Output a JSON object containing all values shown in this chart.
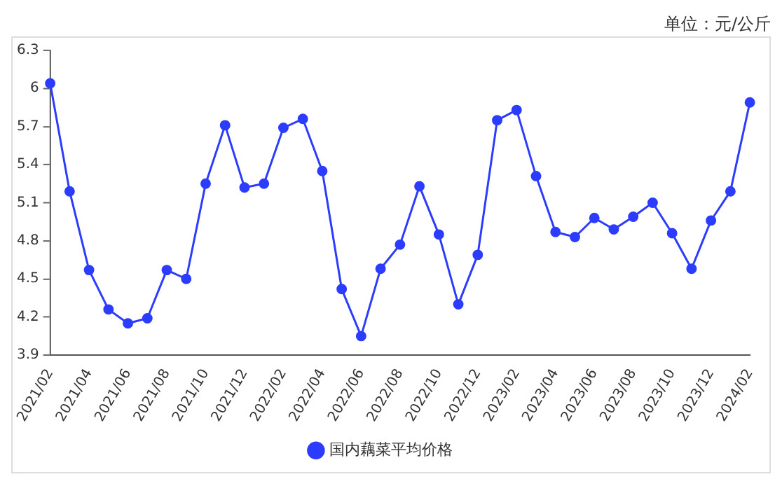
{
  "chart_data": {
    "type": "line",
    "categories": [
      "2021/02",
      null,
      "2021/04",
      null,
      "2021/06",
      null,
      "2021/08",
      null,
      "2021/10",
      null,
      "2021/12",
      null,
      "2022/02",
      null,
      "2022/04",
      null,
      "2022/06",
      null,
      "2022/08",
      null,
      "2022/10",
      null,
      "2022/12",
      null,
      "2023/02",
      null,
      "2023/04",
      null,
      "2023/06",
      null,
      "2023/08",
      null,
      "2023/10",
      null,
      "2023/12",
      null,
      "2024/02"
    ],
    "series": [
      {
        "name": "国内藕菜平均价格",
        "color": "#2c3cff",
        "values": [
          6.04,
          5.19,
          4.57,
          4.26,
          4.15,
          4.19,
          4.57,
          4.5,
          5.25,
          5.71,
          5.22,
          5.25,
          5.69,
          5.76,
          5.35,
          4.42,
          4.05,
          4.58,
          4.77,
          5.23,
          4.85,
          4.3,
          4.69,
          5.75,
          5.83,
          5.31,
          4.87,
          4.83,
          4.98,
          4.89,
          4.99,
          5.1,
          4.86,
          4.58,
          4.96,
          5.19,
          5.89
        ]
      }
    ],
    "ylim": [
      3.9,
      6.3
    ],
    "yticks": [
      3.9,
      4.2,
      4.5,
      4.8,
      5.1,
      5.4,
      5.7,
      6,
      6.3
    ],
    "annotations": [
      "单位：元/公斤"
    ],
    "grid": false,
    "legend": "bottom",
    "marker": "circle",
    "line_style": "solid"
  }
}
